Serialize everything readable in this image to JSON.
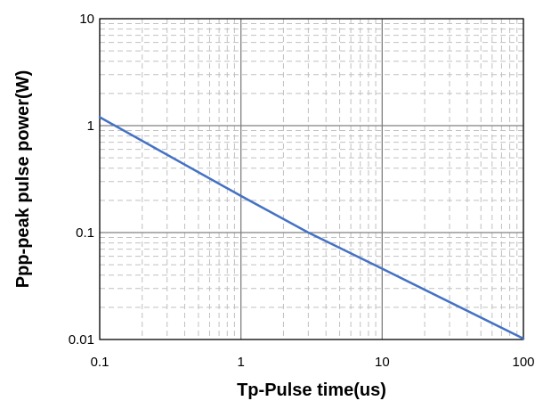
{
  "chart_data": {
    "type": "line",
    "title": "",
    "xlabel": "Tp-Pulse time(us)",
    "ylabel": "Ppp-peak pulse power(W)",
    "xscale": "log",
    "yscale": "log",
    "xlim": [
      0.1,
      100
    ],
    "ylim": [
      0.01,
      10
    ],
    "x_ticks": [
      0.1,
      1,
      10,
      100
    ],
    "x_tick_labels": [
      "0.1",
      "1",
      "10",
      "100"
    ],
    "y_ticks": [
      0.01,
      0.1,
      1,
      10
    ],
    "y_tick_labels": [
      "0.01",
      "0.1",
      "1",
      "10"
    ],
    "grid": true,
    "legend": "none",
    "series": [
      {
        "x": [
          0.1,
          1,
          3,
          10,
          100
        ],
        "y": [
          1.2,
          0.22,
          0.1,
          0.046,
          0.0102
        ],
        "color": "#4472c4"
      }
    ],
    "colors": {
      "major_grid": "#808080",
      "minor_grid": "#c0c0c0",
      "axis": "#000000",
      "line": "#4472c4"
    }
  }
}
